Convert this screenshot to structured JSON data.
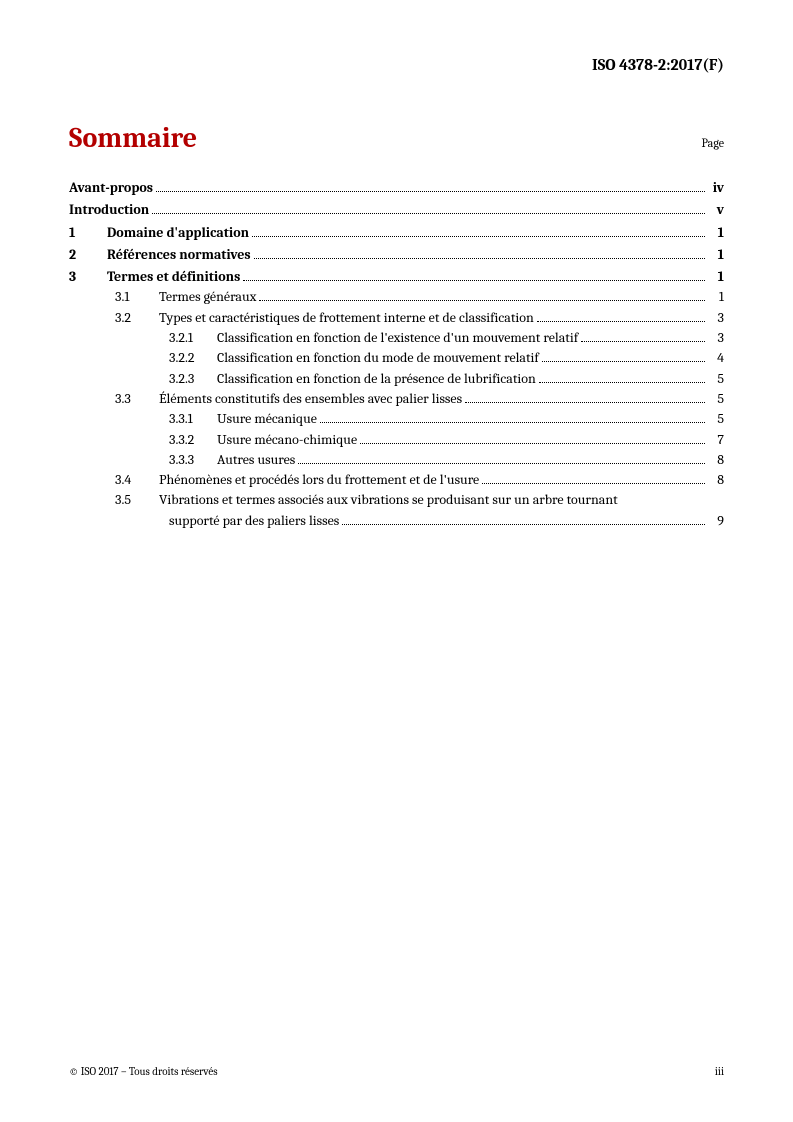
{
  "header": "ISO 4378-2:2017(F)",
  "title": "Sommaire",
  "page_label": "Page",
  "footer_left": "© ISO 2017 – Tous droits réservés",
  "footer_right": "iii",
  "colors": {
    "title_color": "#b30000",
    "text_color": "#000000",
    "background": "#ffffff"
  },
  "typography": {
    "title_fontsize": 28,
    "body_fontsize": 14,
    "header_fontsize": 16,
    "footer_fontsize": 11
  },
  "toc": {
    "avant_propos": {
      "label": "Avant-propos",
      "page": "iv"
    },
    "introduction": {
      "label": "Introduction",
      "page": "v"
    },
    "s1": {
      "num": "1",
      "label": "Domaine d'application",
      "page": "1"
    },
    "s2": {
      "num": "2",
      "label": "Références normatives",
      "page": "1"
    },
    "s3": {
      "num": "3",
      "label": "Termes et définitions",
      "page": "1"
    },
    "s3_1": {
      "num": "3.1",
      "label": "Termes généraux",
      "page": "1"
    },
    "s3_2": {
      "num": "3.2",
      "label": "Types et caractéristiques de frottement interne et de classification",
      "page": "3"
    },
    "s3_2_1": {
      "num": "3.2.1",
      "label": "Classification en fonction de l'existence d'un mouvement relatif",
      "page": "3"
    },
    "s3_2_2": {
      "num": "3.2.2",
      "label": "Classification en fonction du mode de mouvement relatif",
      "page": "4"
    },
    "s3_2_3": {
      "num": "3.2.3",
      "label": "Classification en fonction de la présence de lubrification",
      "page": "5"
    },
    "s3_3": {
      "num": "3.3",
      "label": "Éléments constitutifs des ensembles avec palier lisses",
      "page": "5"
    },
    "s3_3_1": {
      "num": "3.3.1",
      "label": "Usure mécanique",
      "page": "5"
    },
    "s3_3_2": {
      "num": "3.3.2",
      "label": "Usure mécano-chimique",
      "page": "7"
    },
    "s3_3_3": {
      "num": "3.3.3",
      "label": "Autres usures",
      "page": "8"
    },
    "s3_4": {
      "num": "3.4",
      "label": "Phénomènes et procédés lors du frottement et de l'usure",
      "page": "8"
    },
    "s3_5": {
      "num": "3.5",
      "label_line1": "Vibrations et termes associés aux vibrations se produisant sur un arbre tournant",
      "label_line2": "supporté par des paliers lisses",
      "page": "9"
    }
  }
}
